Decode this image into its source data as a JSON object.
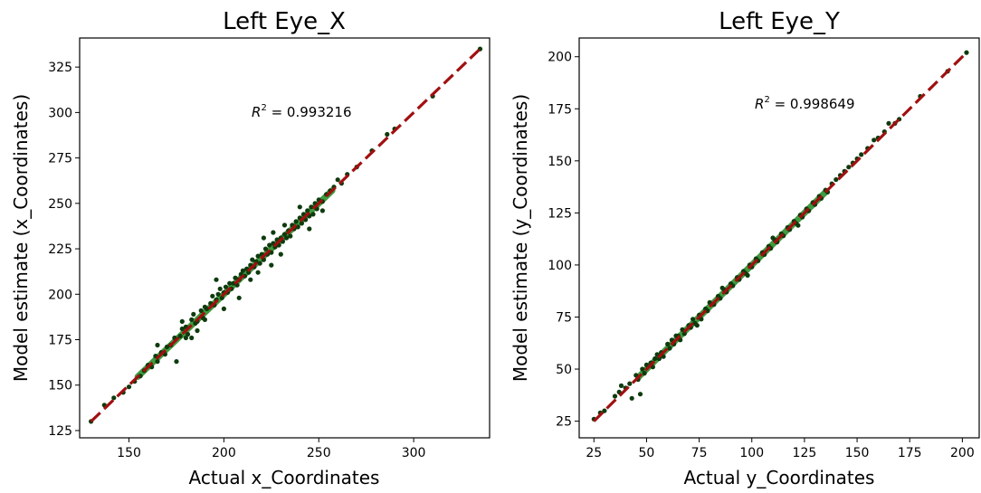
{
  "colors": {
    "points": "#0e3b0e",
    "fit_band": "#1e8a1e",
    "identity_line": "#a01010",
    "axes": "#000000"
  },
  "chart_data": [
    {
      "type": "scatter",
      "title": "Left Eye_X",
      "xlabel": "Actual x_Coordinates",
      "ylabel": "Model estimate (x_Coordinates)",
      "xlim": [
        124,
        340
      ],
      "ylim": [
        121,
        341
      ],
      "xticks": [
        150,
        200,
        250,
        300
      ],
      "yticks": [
        125,
        150,
        175,
        200,
        225,
        250,
        275,
        300,
        325
      ],
      "annotation": {
        "label": "R",
        "sup": "2",
        "value": " = 0.993216"
      },
      "identity_line": [
        [
          130,
          130
        ],
        [
          335,
          335
        ]
      ],
      "grid": false,
      "points": [
        [
          130,
          130
        ],
        [
          137,
          139
        ],
        [
          142,
          143
        ],
        [
          147,
          146
        ],
        [
          150,
          149
        ],
        [
          153,
          152
        ],
        [
          156,
          155
        ],
        [
          158,
          158
        ],
        [
          160,
          161
        ],
        [
          162,
          160
        ],
        [
          164,
          166
        ],
        [
          165,
          163
        ],
        [
          167,
          168
        ],
        [
          169,
          167
        ],
        [
          170,
          171
        ],
        [
          172,
          172
        ],
        [
          174,
          176
        ],
        [
          175,
          163
        ],
        [
          177,
          177
        ],
        [
          178,
          181
        ],
        [
          180,
          182
        ],
        [
          181,
          178
        ],
        [
          183,
          186
        ],
        [
          184,
          189
        ],
        [
          185,
          184
        ],
        [
          186,
          185
        ],
        [
          188,
          191
        ],
        [
          189,
          187
        ],
        [
          190,
          193
        ],
        [
          191,
          192
        ],
        [
          193,
          195
        ],
        [
          194,
          199
        ],
        [
          195,
          194
        ],
        [
          196,
          197
        ],
        [
          197,
          200
        ],
        [
          198,
          203
        ],
        [
          199,
          198
        ],
        [
          200,
          201
        ],
        [
          201,
          204
        ],
        [
          202,
          201
        ],
        [
          203,
          206
        ],
        [
          204,
          203
        ],
        [
          205,
          206
        ],
        [
          206,
          209
        ],
        [
          207,
          205
        ],
        [
          208,
          208
        ],
        [
          209,
          211
        ],
        [
          210,
          213
        ],
        [
          211,
          210
        ],
        [
          212,
          214
        ],
        [
          213,
          212
        ],
        [
          214,
          216
        ],
        [
          215,
          219
        ],
        [
          216,
          215
        ],
        [
          217,
          218
        ],
        [
          218,
          221
        ],
        [
          219,
          217
        ],
        [
          220,
          222
        ],
        [
          221,
          219
        ],
        [
          222,
          225
        ],
        [
          223,
          222
        ],
        [
          224,
          227
        ],
        [
          225,
          223
        ],
        [
          226,
          228
        ],
        [
          227,
          226
        ],
        [
          228,
          230
        ],
        [
          229,
          227
        ],
        [
          230,
          231
        ],
        [
          231,
          229
        ],
        [
          232,
          233
        ],
        [
          233,
          231
        ],
        [
          234,
          235
        ],
        [
          235,
          232
        ],
        [
          236,
          238
        ],
        [
          237,
          236
        ],
        [
          238,
          240
        ],
        [
          239,
          237
        ],
        [
          240,
          242
        ],
        [
          241,
          239
        ],
        [
          242,
          244
        ],
        [
          243,
          241
        ],
        [
          244,
          246
        ],
        [
          245,
          243
        ],
        [
          246,
          248
        ],
        [
          247,
          244
        ],
        [
          248,
          250
        ],
        [
          249,
          247
        ],
        [
          250,
          252
        ],
        [
          252,
          251
        ],
        [
          254,
          255
        ],
        [
          256,
          257
        ],
        [
          258,
          259
        ],
        [
          260,
          263
        ],
        [
          262,
          261
        ],
        [
          265,
          266
        ],
        [
          270,
          270
        ],
        [
          278,
          279
        ],
        [
          286,
          288
        ],
        [
          290,
          291
        ],
        [
          310,
          309
        ],
        [
          335,
          335
        ],
        [
          196,
          208
        ],
        [
          190,
          186
        ],
        [
          225,
          216
        ],
        [
          232,
          238
        ],
        [
          245,
          236
        ],
        [
          221,
          231
        ],
        [
          186,
          180
        ],
        [
          252,
          246
        ],
        [
          214,
          208
        ],
        [
          208,
          198
        ],
        [
          226,
          234
        ],
        [
          180,
          176
        ],
        [
          178,
          185
        ],
        [
          165,
          172
        ],
        [
          240,
          248
        ],
        [
          200,
          192
        ],
        [
          183,
          176
        ],
        [
          218,
          212
        ],
        [
          230,
          222
        ]
      ]
    },
    {
      "type": "scatter",
      "title": "Left Eye_Y",
      "xlabel": "Actual y_Coordinates",
      "ylabel": "Model estimate (y_Coordinates)",
      "xlim": [
        18,
        208
      ],
      "ylim": [
        17,
        209
      ],
      "xticks": [
        25,
        50,
        75,
        100,
        125,
        150,
        175,
        200
      ],
      "yticks": [
        25,
        50,
        75,
        100,
        125,
        150,
        175,
        200
      ],
      "annotation": {
        "label": "R",
        "sup": "2",
        "value": " = 0.998649"
      },
      "identity_line": [
        [
          25,
          25
        ],
        [
          202,
          202
        ]
      ],
      "grid": false,
      "points": [
        [
          25,
          26
        ],
        [
          28,
          29
        ],
        [
          30,
          30
        ],
        [
          35,
          37
        ],
        [
          37,
          39
        ],
        [
          38,
          42
        ],
        [
          40,
          41
        ],
        [
          42,
          43
        ],
        [
          43,
          36
        ],
        [
          45,
          47
        ],
        [
          46,
          45
        ],
        [
          47,
          38
        ],
        [
          48,
          50
        ],
        [
          49,
          48
        ],
        [
          50,
          52
        ],
        [
          52,
          53
        ],
        [
          53,
          51
        ],
        [
          54,
          55
        ],
        [
          55,
          57
        ],
        [
          57,
          58
        ],
        [
          58,
          56
        ],
        [
          60,
          62
        ],
        [
          61,
          60
        ],
        [
          62,
          64
        ],
        [
          63,
          62
        ],
        [
          65,
          66
        ],
        [
          66,
          64
        ],
        [
          67,
          69
        ],
        [
          68,
          67
        ],
        [
          70,
          71
        ],
        [
          71,
          70
        ],
        [
          72,
          74
        ],
        [
          73,
          72
        ],
        [
          75,
          76
        ],
        [
          76,
          74
        ],
        [
          78,
          79
        ],
        [
          79,
          78
        ],
        [
          80,
          82
        ],
        [
          82,
          81
        ],
        [
          84,
          85
        ],
        [
          85,
          84
        ],
        [
          87,
          88
        ],
        [
          88,
          87
        ],
        [
          90,
          91
        ],
        [
          91,
          90
        ],
        [
          93,
          94
        ],
        [
          94,
          93
        ],
        [
          96,
          97
        ],
        [
          97,
          96
        ],
        [
          99,
          100
        ],
        [
          100,
          99
        ],
        [
          102,
          103
        ],
        [
          103,
          102
        ],
        [
          105,
          106
        ],
        [
          106,
          105
        ],
        [
          108,
          109
        ],
        [
          109,
          108
        ],
        [
          111,
          112
        ],
        [
          112,
          111
        ],
        [
          114,
          115
        ],
        [
          115,
          114
        ],
        [
          117,
          118
        ],
        [
          118,
          117
        ],
        [
          120,
          121
        ],
        [
          121,
          120
        ],
        [
          123,
          124
        ],
        [
          124,
          123
        ],
        [
          126,
          127
        ],
        [
          127,
          126
        ],
        [
          129,
          130
        ],
        [
          130,
          129
        ],
        [
          132,
          133
        ],
        [
          133,
          132
        ],
        [
          135,
          136
        ],
        [
          136,
          135
        ],
        [
          138,
          139
        ],
        [
          140,
          141
        ],
        [
          142,
          143
        ],
        [
          144,
          145
        ],
        [
          146,
          147
        ],
        [
          148,
          149
        ],
        [
          150,
          151
        ],
        [
          152,
          153
        ],
        [
          155,
          156
        ],
        [
          158,
          160
        ],
        [
          160,
          161
        ],
        [
          163,
          164
        ],
        [
          165,
          168
        ],
        [
          168,
          168
        ],
        [
          170,
          170
        ],
        [
          180,
          181
        ],
        [
          193,
          193
        ],
        [
          202,
          202
        ],
        [
          56,
          55
        ],
        [
          64,
          66
        ],
        [
          74,
          71
        ],
        [
          86,
          89
        ],
        [
          98,
          95
        ],
        [
          110,
          113
        ],
        [
          122,
          119
        ]
      ]
    }
  ]
}
